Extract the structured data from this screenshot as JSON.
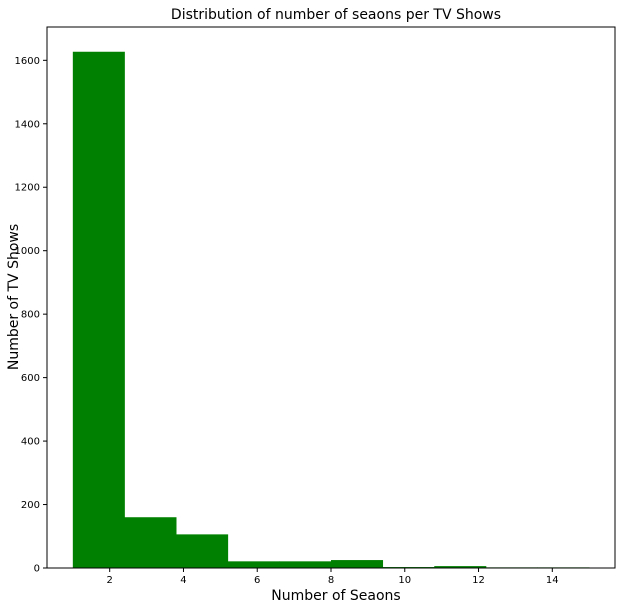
{
  "chart_data": {
    "type": "bar",
    "title": "Distribution of number of seaons per TV Shows",
    "xlabel": "Number of Seaons",
    "ylabel": "Number of TV Shows",
    "xlim": [
      0.3,
      15.7
    ],
    "ylim": [
      0,
      1705
    ],
    "xticks": [
      2,
      4,
      6,
      8,
      10,
      12,
      14
    ],
    "yticks": [
      0,
      200,
      400,
      600,
      800,
      1000,
      1200,
      1400,
      1600
    ],
    "bin_edges": [
      1.0,
      2.4,
      3.8,
      5.2,
      6.6,
      8.0,
      9.4,
      10.8,
      12.2,
      13.6,
      15.0
    ],
    "values": [
      1627,
      160,
      106,
      21,
      21,
      25,
      3,
      6,
      2,
      2
    ],
    "grid": false,
    "legend": "none",
    "colors": {
      "bar": "#008000",
      "axis": "#000000",
      "background": "#ffffff"
    }
  }
}
